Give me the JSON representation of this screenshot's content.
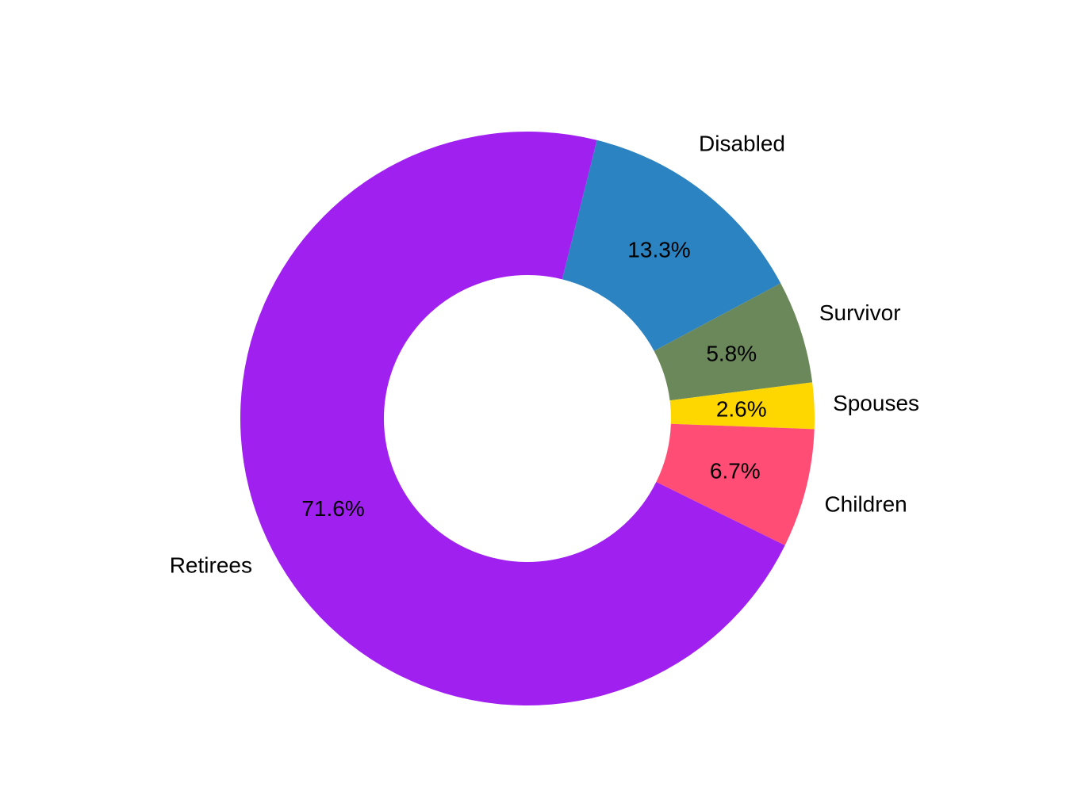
{
  "chart_data": {
    "type": "pie",
    "donut": true,
    "title": "",
    "start_angle_deg": 14,
    "direction": "clockwise",
    "slices": [
      {
        "label": "Disabled",
        "value": 13.3,
        "value_label": "13.3%",
        "color": "#2b83c1"
      },
      {
        "label": "Survivor",
        "value": 5.8,
        "value_label": "5.8%",
        "color": "#6b885b"
      },
      {
        "label": "Spouses",
        "value": 2.6,
        "value_label": "2.6%",
        "color": "#ffd700"
      },
      {
        "label": "Children",
        "value": 6.7,
        "value_label": "6.7%",
        "color": "#ff4d75"
      },
      {
        "label": "Retirees",
        "value": 71.6,
        "value_label": "71.6%",
        "color": "#a020f0"
      }
    ],
    "legend": "none"
  }
}
